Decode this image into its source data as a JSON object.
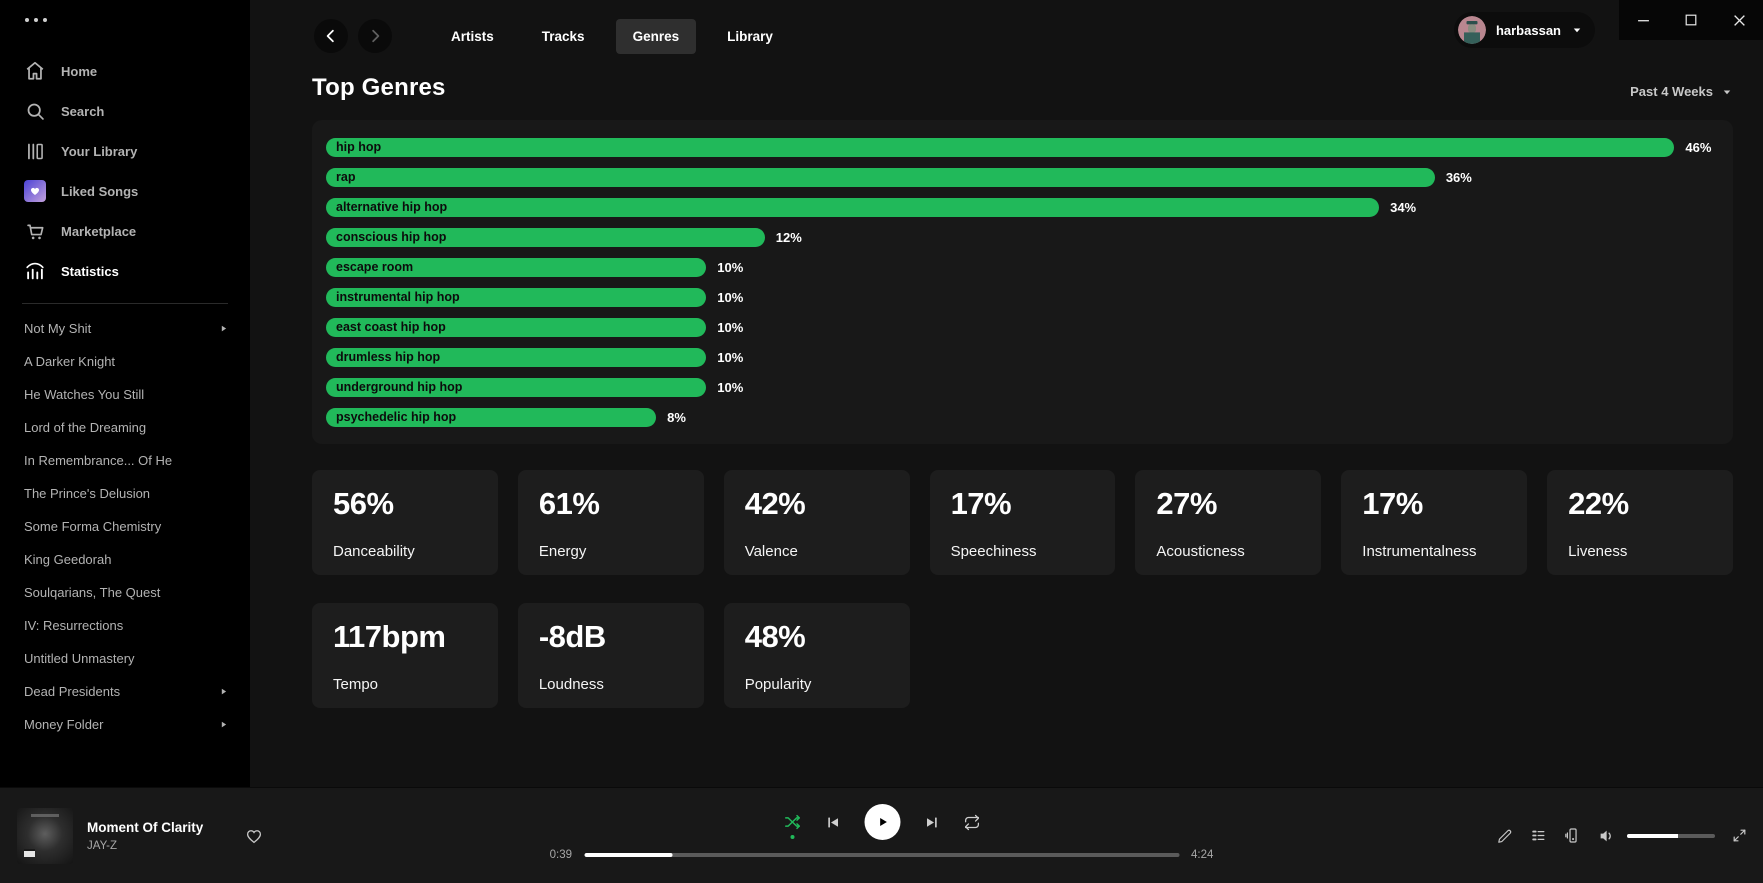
{
  "colors": {
    "accent_green": "#21b95a",
    "liked_gradient_start": "#4b43d6",
    "liked_gradient_end": "#c3a1dc"
  },
  "titlebar": {
    "controls": [
      "minimize",
      "maximize",
      "close"
    ]
  },
  "sidebar": {
    "menu": [
      {
        "label": "Home",
        "icon": "home-icon"
      },
      {
        "label": "Search",
        "icon": "search-icon"
      },
      {
        "label": "Your Library",
        "icon": "library-icon"
      },
      {
        "label": "Liked Songs",
        "icon": "liked-songs-icon"
      },
      {
        "label": "Marketplace",
        "icon": "marketplace-icon"
      },
      {
        "label": "Statistics",
        "icon": "statistics-icon",
        "active": true
      }
    ],
    "playlists": [
      {
        "label": "Not My Shit",
        "has_submenu": true
      },
      {
        "label": "A Darker Knight"
      },
      {
        "label": "He Watches You Still"
      },
      {
        "label": "Lord of the Dreaming"
      },
      {
        "label": "In Remembrance... Of He"
      },
      {
        "label": "The Prince's Delusion"
      },
      {
        "label": "Some Forma Chemistry"
      },
      {
        "label": "King Geedorah"
      },
      {
        "label": "Soulqarians, The Quest"
      },
      {
        "label": "IV: Resurrections"
      },
      {
        "label": "Untitled Unmastery"
      },
      {
        "label": "Dead Presidents",
        "has_submenu": true
      },
      {
        "label": "Money Folder",
        "has_submenu": true
      }
    ]
  },
  "header": {
    "tabs": [
      {
        "label": "Artists"
      },
      {
        "label": "Tracks"
      },
      {
        "label": "Genres"
      },
      {
        "label": "Library"
      }
    ],
    "active_tab": "Genres",
    "user": "harbassan"
  },
  "page": {
    "title": "Top Genres",
    "time_range": "Past 4 Weeks"
  },
  "chart_data": {
    "type": "bar",
    "orientation": "horizontal",
    "title": "Top Genres",
    "time_range": "Past 4 Weeks",
    "unit": "%",
    "categories": [
      "hip hop",
      "rap",
      "alternative hip hop",
      "conscious hip hop",
      "escape room",
      "instrumental hip hop",
      "east coast hip hop",
      "drumless hip hop",
      "underground hip hop",
      "psychedelic hip hop"
    ],
    "values": [
      46,
      36,
      34,
      12,
      10,
      10,
      10,
      10,
      10,
      8
    ],
    "value_labels": [
      "46%",
      "36%",
      "34%",
      "12%",
      "10%",
      "10%",
      "10%",
      "10%",
      "10%",
      "8%"
    ],
    "bar_width_pct": [
      96.8,
      79.6,
      75.6,
      31.5,
      27.3,
      27.3,
      27.3,
      27.3,
      27.3,
      23.7
    ],
    "bar_color": "#21b95a",
    "grid": false,
    "legend": false
  },
  "audio_features": {
    "cards": [
      {
        "value": "56%",
        "label": "Danceability"
      },
      {
        "value": "61%",
        "label": "Energy"
      },
      {
        "value": "42%",
        "label": "Valence"
      },
      {
        "value": "17%",
        "label": "Speechiness"
      },
      {
        "value": "27%",
        "label": "Acousticness"
      },
      {
        "value": "17%",
        "label": "Instrumentalness"
      },
      {
        "value": "22%",
        "label": "Liveness"
      },
      {
        "value": "117bpm",
        "label": "Tempo"
      },
      {
        "value": "-8dB",
        "label": "Loudness"
      },
      {
        "value": "48%",
        "label": "Popularity"
      }
    ]
  },
  "player": {
    "track": "Moment Of Clarity",
    "artist": "JAY-Z",
    "elapsed": "0:39",
    "duration": "4:24",
    "progress_pct": 14.8,
    "volume_pct": 58,
    "shuffle_active": true,
    "playing": true
  }
}
